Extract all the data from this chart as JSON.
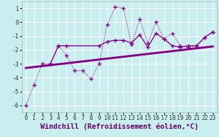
{
  "xlabel": "Windchill (Refroidissement éolien,°C)",
  "xlim": [
    -0.5,
    23.5
  ],
  "ylim": [
    -6.5,
    1.5
  ],
  "yticks": [
    -6,
    -5,
    -4,
    -3,
    -2,
    -1,
    0,
    1
  ],
  "bg_color": "#c8eef0",
  "line_color": "#880088",
  "grid_color": "#ffffff",
  "zigzag_x": [
    0,
    1,
    2,
    3,
    4,
    5,
    6,
    7,
    8,
    9,
    10,
    11,
    12,
    13,
    14,
    15,
    16,
    17,
    18,
    19,
    20,
    21,
    22,
    23
  ],
  "zigzag_y": [
    -6.0,
    -4.5,
    -3.0,
    -3.0,
    -1.7,
    -2.4,
    -3.5,
    -3.5,
    -4.1,
    -3.0,
    -0.2,
    1.1,
    1.0,
    -1.6,
    0.2,
    -1.5,
    0.0,
    -1.2,
    -0.8,
    -1.7,
    -1.8,
    -1.7,
    -1.1,
    -0.7
  ],
  "smooth_x": [
    3,
    4,
    5,
    9,
    10,
    11,
    12,
    13,
    14,
    15,
    16,
    17,
    18,
    19,
    20,
    21,
    22,
    23
  ],
  "smooth_y": [
    -3.0,
    -1.7,
    -1.7,
    -1.7,
    -1.4,
    -1.3,
    -1.3,
    -1.5,
    -0.9,
    -1.8,
    -0.8,
    -1.2,
    -1.7,
    -1.8,
    -1.7,
    -1.7,
    -1.1,
    -0.7
  ],
  "trend_x": [
    0,
    23
  ],
  "trend_y": [
    -3.3,
    -1.75
  ],
  "xlabel_color": "#660066",
  "xlabel_fontsize": 7.5,
  "tick_fontsize": 6.0
}
